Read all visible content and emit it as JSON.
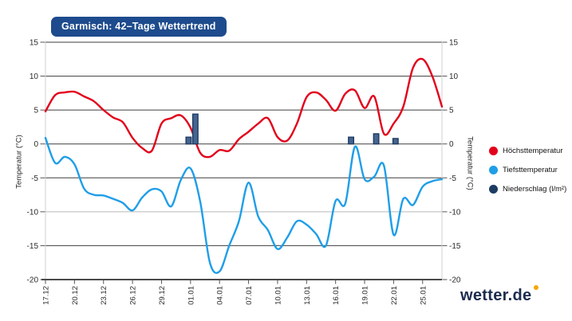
{
  "header": {
    "title": "Garmisch: 42–Tage Wettertrend",
    "badge_color": "#1d4b8d"
  },
  "branding": {
    "logo_text": "wetter.de",
    "logo_color": "#1c2c4e",
    "logo_dot_color": "#f7a600"
  },
  "chart_data": {
    "type": "line",
    "title": "Garmisch: 42–Tage Wettertrend",
    "y_axis_title_left": "Temperatur (°C)",
    "y_axis_title_right": "Temperatur (°C)",
    "ylim": [
      -20,
      15
    ],
    "y_ticks": [
      15,
      10,
      5,
      0,
      -5,
      -10,
      -15,
      -20
    ],
    "days": 42,
    "x_tick_labels": [
      "17.12",
      "20.12",
      "23.12",
      "26.12",
      "29.12",
      "01.01",
      "04.01",
      "07.01",
      "10.01",
      "13.01",
      "16.01",
      "19.01",
      "22.01",
      "25.01"
    ],
    "x_tick_day_indices": [
      0,
      3,
      6,
      9,
      12,
      15,
      18,
      21,
      24,
      27,
      30,
      33,
      36,
      39
    ],
    "grid": "horizontal-only",
    "legend_position": "right",
    "series": [
      {
        "name": "Höchsttemperatur",
        "type": "line",
        "color": "#e2001a",
        "values": [
          4.8,
          7.2,
          7.6,
          7.7,
          7.0,
          6.3,
          5.0,
          3.9,
          3.2,
          0.9,
          -0.6,
          -1.0,
          3.0,
          3.8,
          4.2,
          2.4,
          -1.3,
          -1.9,
          -0.9,
          -1.0,
          0.7,
          1.8,
          3.0,
          3.8,
          1.0,
          0.5,
          3.0,
          6.9,
          7.6,
          6.5,
          4.9,
          7.4,
          7.9,
          5.3,
          7.0,
          1.5,
          3.0,
          5.5,
          11.2,
          12.5,
          10.0,
          5.5
        ]
      },
      {
        "name": "Tiefsttemperatur",
        "type": "line",
        "color": "#1f9ee8",
        "values": [
          0.9,
          -2.8,
          -1.9,
          -3.0,
          -6.6,
          -7.5,
          -7.6,
          -8.1,
          -8.7,
          -9.8,
          -7.9,
          -6.7,
          -7.0,
          -9.2,
          -5.3,
          -3.6,
          -8.5,
          -17.5,
          -18.8,
          -15.0,
          -11.4,
          -5.7,
          -10.7,
          -12.7,
          -15.5,
          -13.8,
          -11.4,
          -11.9,
          -13.3,
          -15.0,
          -8.4,
          -8.8,
          -0.4,
          -5.2,
          -4.8,
          -3.2,
          -13.4,
          -8.1,
          -9.0,
          -6.3,
          -5.5,
          -5.2
        ]
      },
      {
        "name": "Niederschlag (l/m²)",
        "type": "bar",
        "color": "#1d3c63",
        "fill": "#46648f",
        "points": [
          {
            "date": "01.01",
            "day": 14.8,
            "value": 1.0
          },
          {
            "date": "02.01",
            "day": 15.5,
            "value": 4.4
          },
          {
            "date": "18.01",
            "day": 31.6,
            "value": 1.0
          },
          {
            "date": "20.01",
            "day": 34.2,
            "value": 1.5
          },
          {
            "date": "22.01",
            "day": 36.2,
            "value": 0.8
          }
        ]
      }
    ]
  }
}
